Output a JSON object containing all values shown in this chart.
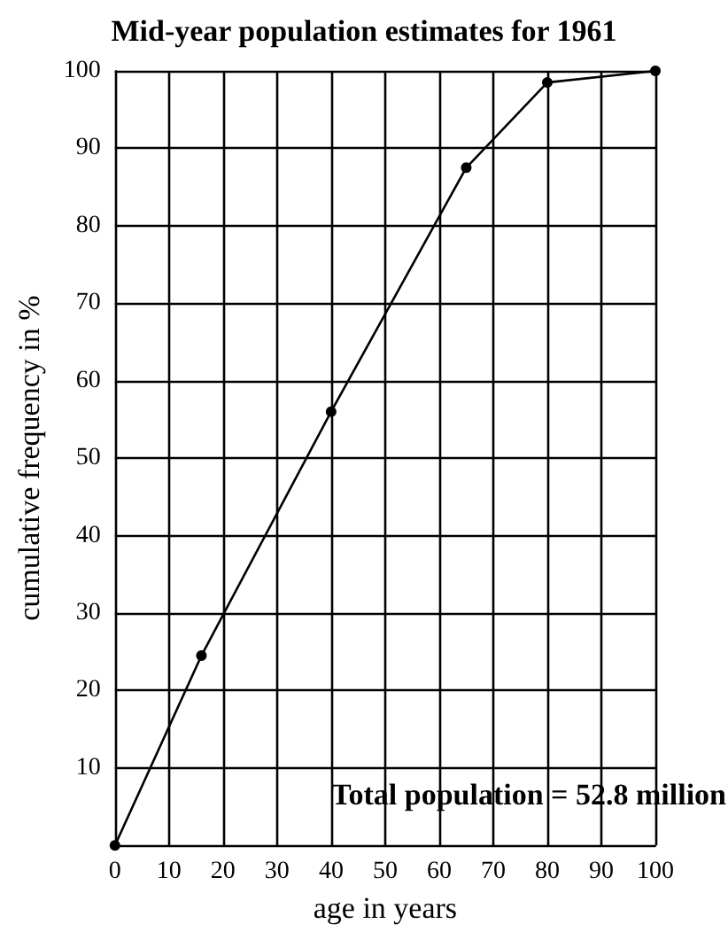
{
  "chart_data": {
    "type": "line",
    "title": "Mid-year population estimates for 1961",
    "xlabel": "age in years",
    "ylabel": "cumulative frequency in %",
    "x": [
      0,
      16,
      40,
      65,
      80,
      100
    ],
    "series": [
      {
        "color": "#000000",
        "values": [
          0,
          24.5,
          56,
          87.5,
          98.5,
          100
        ]
      }
    ],
    "xlim": [
      0,
      100
    ],
    "xticks": [
      0,
      10,
      20,
      30,
      40,
      50,
      60,
      70,
      80,
      90,
      100
    ],
    "ylim": [
      0,
      100
    ],
    "yticks": [
      {
        "value": 0,
        "label": null
      },
      10,
      20,
      30,
      40,
      50,
      60,
      70,
      80,
      90,
      100
    ],
    "annotations": [
      "Total population = 52.8 million"
    ],
    "grid": true,
    "marker": "circle",
    "line_style": "solid"
  }
}
